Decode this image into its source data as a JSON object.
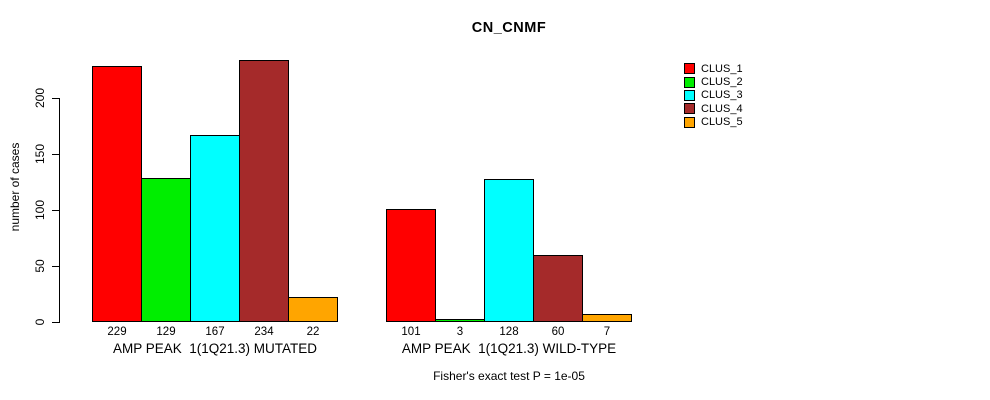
{
  "page": {
    "background": "#ffffff",
    "text_color": "#000000"
  },
  "chart_data": {
    "type": "bar",
    "title": "CN_CNMF",
    "ylabel": "number of cases",
    "xlabel": "",
    "yticks": [
      0,
      50,
      100,
      150,
      200
    ],
    "ylim": [
      0,
      240
    ],
    "grid": false,
    "legend_position": "right",
    "series_names": [
      "CLUS_1",
      "CLUS_2",
      "CLUS_3",
      "CLUS_4",
      "CLUS_5"
    ],
    "series_colors": [
      "#ff0000",
      "#00ee00",
      "#00ffff",
      "#a52a2a",
      "#ffa500"
    ],
    "groups": [
      {
        "label": "AMP PEAK  1(1Q21.3) MUTATED",
        "values": [
          229,
          129,
          167,
          234,
          22
        ]
      },
      {
        "label": "AMP PEAK  1(1Q21.3) WILD-TYPE",
        "values": [
          101,
          3,
          128,
          60,
          7
        ]
      }
    ],
    "footnote": "Fisher's exact test P = 1e-05"
  },
  "legend": {
    "items": [
      {
        "label": "CLUS_1",
        "color": "#ff0000"
      },
      {
        "label": "CLUS_2",
        "color": "#00ee00"
      },
      {
        "label": "CLUS_3",
        "color": "#00ffff"
      },
      {
        "label": "CLUS_4",
        "color": "#a52a2a"
      },
      {
        "label": "CLUS_5",
        "color": "#ffa500"
      }
    ]
  }
}
